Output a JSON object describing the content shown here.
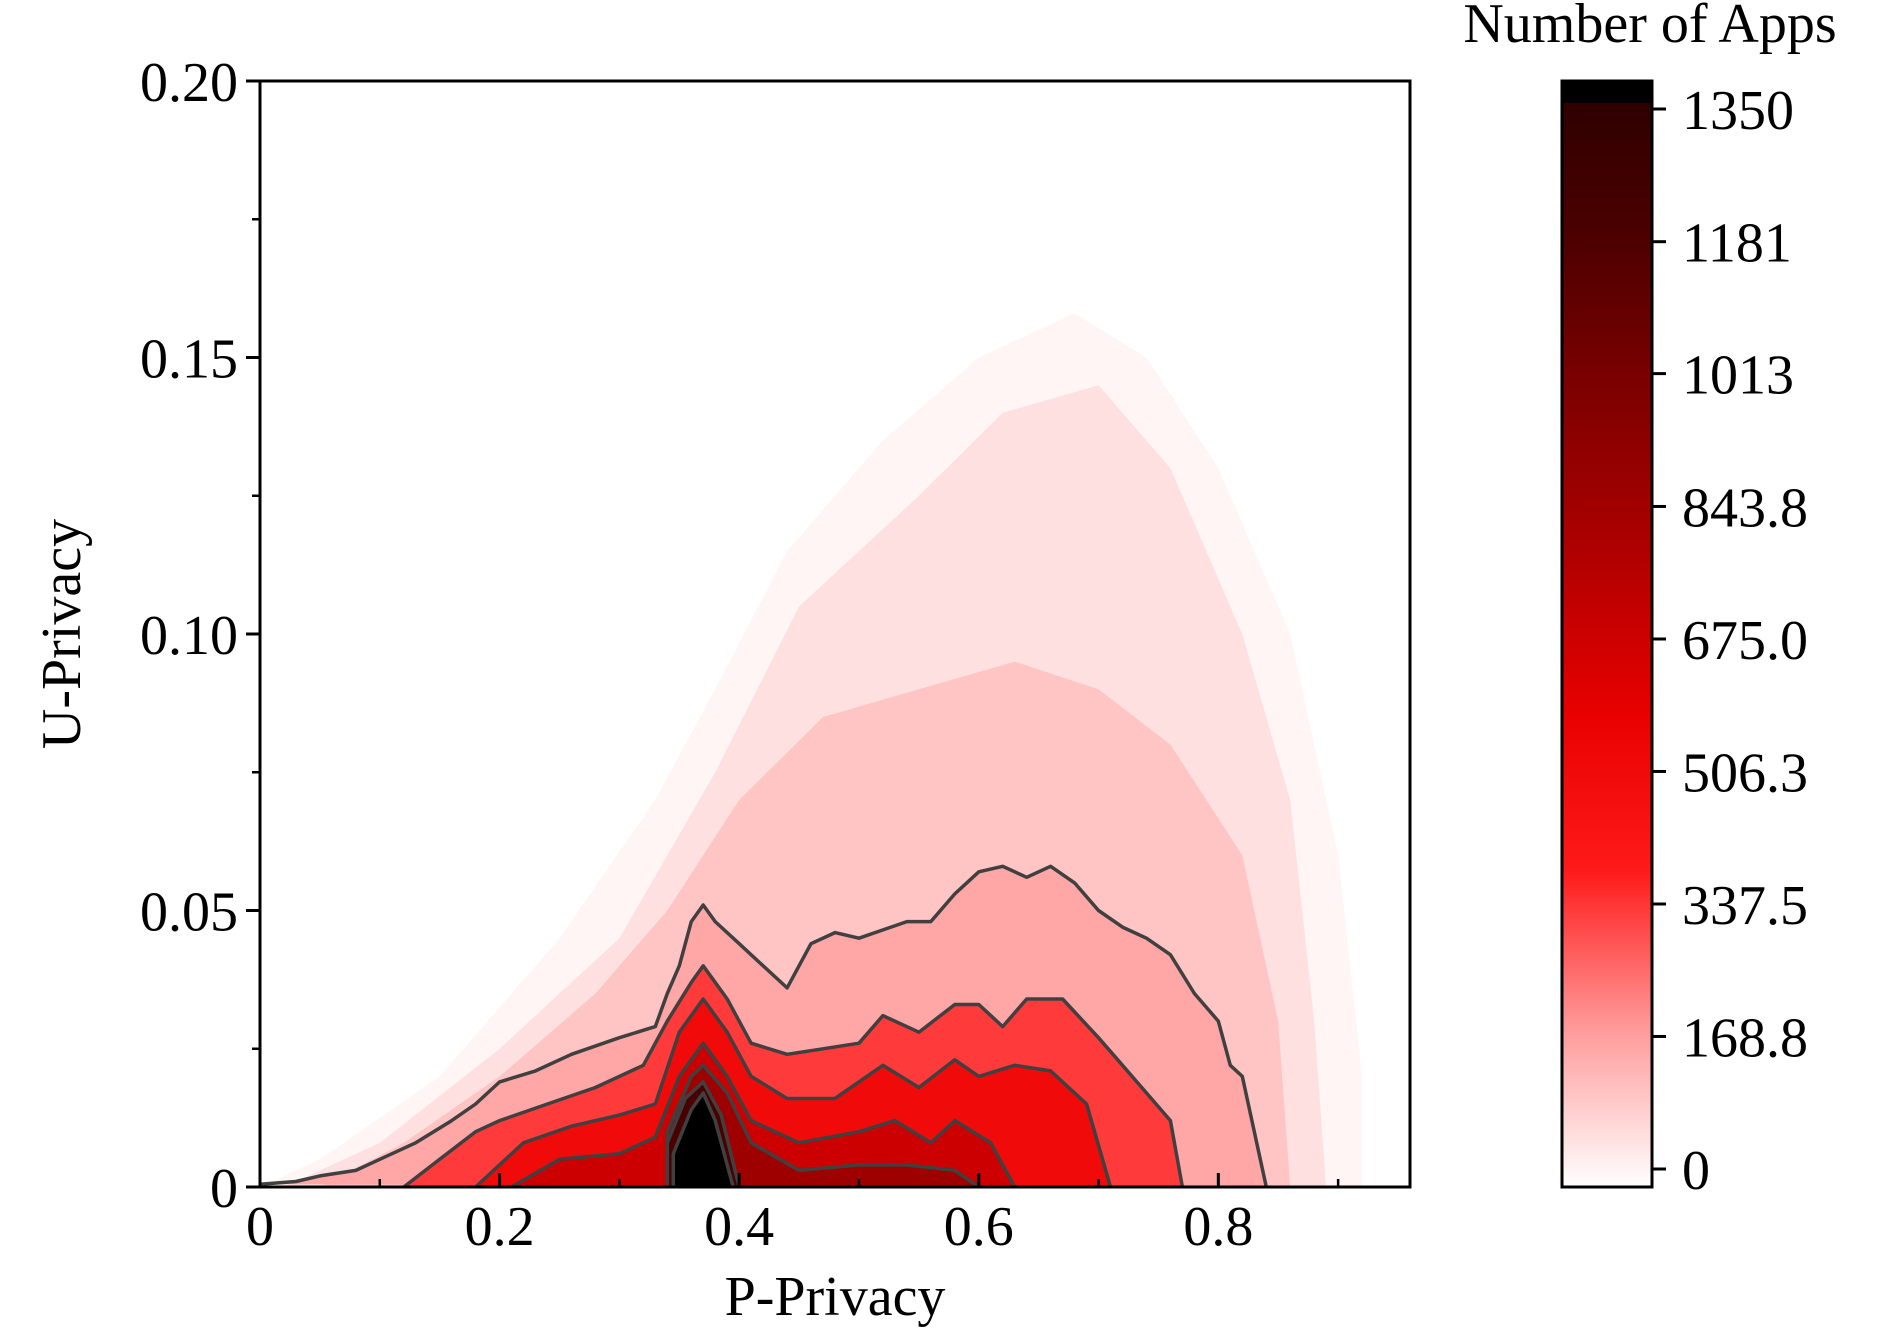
{
  "chart_data": {
    "type": "heatmap",
    "subtype": "filled-contour",
    "title": "",
    "xlabel": "P-Privacy",
    "ylabel": "U-Privacy",
    "xlim": [
      0,
      0.96
    ],
    "ylim": [
      0,
      0.2
    ],
    "x_ticks": [
      0,
      0.2,
      0.4,
      0.6,
      0.8
    ],
    "x_tick_labels": [
      "0",
      "0.2",
      "0.4",
      "0.6",
      "0.8"
    ],
    "y_ticks": [
      0,
      0.05,
      0.1,
      0.15,
      0.2
    ],
    "y_tick_labels": [
      "0",
      "0.05",
      "0.10",
      "0.15",
      "0.20"
    ],
    "colorbar": {
      "title": "Number of Apps",
      "range": [
        0,
        1350
      ],
      "ticks": [
        0,
        168.8,
        337.5,
        506.3,
        675.0,
        843.8,
        1013,
        1181,
        1350
      ],
      "tick_labels": [
        "0",
        "168.8",
        "337.5",
        "506.3",
        "675.0",
        "843.8",
        "1013",
        "1181",
        "1350"
      ],
      "colormap": [
        "#ffffff",
        "#ff9a9a",
        "#ff1a1a",
        "#e80000",
        "#b00000",
        "#800000",
        "#4d0000",
        "#2a0000"
      ],
      "top_color": "#000000"
    },
    "contour_levels": [
      169,
      338,
      506,
      675,
      844,
      1013,
      1181,
      1350
    ],
    "contour_line_color": "#404040",
    "regions": [
      {
        "level": 20,
        "outline": [
          [
            0,
            0
          ],
          [
            0.05,
            0.005
          ],
          [
            0.15,
            0.02
          ],
          [
            0.25,
            0.045
          ],
          [
            0.33,
            0.07
          ],
          [
            0.38,
            0.09
          ],
          [
            0.44,
            0.115
          ],
          [
            0.52,
            0.135
          ],
          [
            0.6,
            0.15
          ],
          [
            0.68,
            0.158
          ],
          [
            0.74,
            0.15
          ],
          [
            0.8,
            0.13
          ],
          [
            0.86,
            0.1
          ],
          [
            0.9,
            0.06
          ],
          [
            0.92,
            0.02
          ],
          [
            0.92,
            0
          ]
        ]
      },
      {
        "level": 60,
        "outline": [
          [
            0.02,
            0
          ],
          [
            0.1,
            0.008
          ],
          [
            0.2,
            0.025
          ],
          [
            0.3,
            0.045
          ],
          [
            0.38,
            0.075
          ],
          [
            0.45,
            0.105
          ],
          [
            0.55,
            0.125
          ],
          [
            0.62,
            0.14
          ],
          [
            0.7,
            0.145
          ],
          [
            0.76,
            0.13
          ],
          [
            0.82,
            0.1
          ],
          [
            0.86,
            0.07
          ],
          [
            0.88,
            0.03
          ],
          [
            0.89,
            0
          ]
        ]
      },
      {
        "level": 110,
        "outline": [
          [
            0.05,
            0
          ],
          [
            0.12,
            0.008
          ],
          [
            0.2,
            0.02
          ],
          [
            0.28,
            0.035
          ],
          [
            0.34,
            0.05
          ],
          [
            0.4,
            0.07
          ],
          [
            0.47,
            0.085
          ],
          [
            0.55,
            0.09
          ],
          [
            0.63,
            0.095
          ],
          [
            0.7,
            0.09
          ],
          [
            0.76,
            0.08
          ],
          [
            0.82,
            0.06
          ],
          [
            0.85,
            0.03
          ],
          [
            0.86,
            0
          ]
        ]
      },
      {
        "level": 169,
        "outline": [
          [
            0,
            0.0005
          ],
          [
            0.03,
            0.001
          ],
          [
            0.05,
            0.002
          ],
          [
            0.08,
            0.003
          ],
          [
            0.1,
            0.005
          ],
          [
            0.13,
            0.008
          ],
          [
            0.16,
            0.012
          ],
          [
            0.18,
            0.015
          ],
          [
            0.2,
            0.019
          ],
          [
            0.23,
            0.021
          ],
          [
            0.26,
            0.024
          ],
          [
            0.3,
            0.027
          ],
          [
            0.33,
            0.029
          ],
          [
            0.34,
            0.035
          ],
          [
            0.35,
            0.04
          ],
          [
            0.36,
            0.048
          ],
          [
            0.37,
            0.051
          ],
          [
            0.38,
            0.048
          ],
          [
            0.4,
            0.044
          ],
          [
            0.42,
            0.04
          ],
          [
            0.44,
            0.036
          ],
          [
            0.46,
            0.044
          ],
          [
            0.48,
            0.046
          ],
          [
            0.5,
            0.045
          ],
          [
            0.54,
            0.048
          ],
          [
            0.56,
            0.048
          ],
          [
            0.58,
            0.053
          ],
          [
            0.6,
            0.057
          ],
          [
            0.62,
            0.058
          ],
          [
            0.64,
            0.056
          ],
          [
            0.66,
            0.058
          ],
          [
            0.68,
            0.055
          ],
          [
            0.7,
            0.05
          ],
          [
            0.72,
            0.047
          ],
          [
            0.74,
            0.045
          ],
          [
            0.76,
            0.042
          ],
          [
            0.78,
            0.035
          ],
          [
            0.8,
            0.03
          ],
          [
            0.81,
            0.022
          ],
          [
            0.82,
            0.02
          ],
          [
            0.84,
            0
          ]
        ]
      },
      {
        "level": 338,
        "outline": [
          [
            0.12,
            0
          ],
          [
            0.15,
            0.005
          ],
          [
            0.18,
            0.01
          ],
          [
            0.2,
            0.012
          ],
          [
            0.24,
            0.015
          ],
          [
            0.28,
            0.018
          ],
          [
            0.32,
            0.022
          ],
          [
            0.34,
            0.03
          ],
          [
            0.36,
            0.037
          ],
          [
            0.37,
            0.04
          ],
          [
            0.39,
            0.034
          ],
          [
            0.41,
            0.026
          ],
          [
            0.44,
            0.024
          ],
          [
            0.47,
            0.025
          ],
          [
            0.5,
            0.026
          ],
          [
            0.52,
            0.031
          ],
          [
            0.55,
            0.028
          ],
          [
            0.58,
            0.033
          ],
          [
            0.6,
            0.033
          ],
          [
            0.62,
            0.029
          ],
          [
            0.64,
            0.034
          ],
          [
            0.67,
            0.034
          ],
          [
            0.7,
            0.027
          ],
          [
            0.72,
            0.022
          ],
          [
            0.74,
            0.017
          ],
          [
            0.76,
            0.012
          ],
          [
            0.77,
            0
          ]
        ]
      },
      {
        "level": 506,
        "outline": [
          [
            0.18,
            0
          ],
          [
            0.22,
            0.008
          ],
          [
            0.26,
            0.011
          ],
          [
            0.3,
            0.013
          ],
          [
            0.33,
            0.015
          ],
          [
            0.35,
            0.028
          ],
          [
            0.37,
            0.034
          ],
          [
            0.39,
            0.028
          ],
          [
            0.41,
            0.02
          ],
          [
            0.44,
            0.016
          ],
          [
            0.48,
            0.016
          ],
          [
            0.52,
            0.022
          ],
          [
            0.55,
            0.018
          ],
          [
            0.58,
            0.023
          ],
          [
            0.6,
            0.02
          ],
          [
            0.63,
            0.022
          ],
          [
            0.66,
            0.021
          ],
          [
            0.69,
            0.015
          ],
          [
            0.71,
            0
          ]
        ]
      },
      {
        "level": 675,
        "outline": [
          [
            0.21,
            0
          ],
          [
            0.25,
            0.005
          ],
          [
            0.3,
            0.006
          ],
          [
            0.33,
            0.009
          ],
          [
            0.35,
            0.02
          ],
          [
            0.37,
            0.026
          ],
          [
            0.39,
            0.02
          ],
          [
            0.41,
            0.012
          ],
          [
            0.45,
            0.008
          ],
          [
            0.5,
            0.01
          ],
          [
            0.53,
            0.012
          ],
          [
            0.56,
            0.008
          ],
          [
            0.58,
            0.012
          ],
          [
            0.61,
            0.008
          ],
          [
            0.63,
            0
          ]
        ]
      },
      {
        "level": 844,
        "outline": [
          [
            0.34,
            0
          ],
          [
            0.34,
            0.01
          ],
          [
            0.36,
            0.02
          ],
          [
            0.37,
            0.022
          ],
          [
            0.39,
            0.017
          ],
          [
            0.41,
            0.008
          ],
          [
            0.45,
            0.003
          ],
          [
            0.5,
            0.004
          ],
          [
            0.54,
            0.004
          ],
          [
            0.58,
            0.003
          ],
          [
            0.6,
            0
          ]
        ]
      },
      {
        "level": 1181,
        "outline": [
          [
            0.34,
            0
          ],
          [
            0.34,
            0.008
          ],
          [
            0.355,
            0.016
          ],
          [
            0.37,
            0.019
          ],
          [
            0.385,
            0.013
          ],
          [
            0.4,
            0
          ]
        ]
      },
      {
        "level": 1350,
        "outline": [
          [
            0.345,
            0
          ],
          [
            0.345,
            0.006
          ],
          [
            0.36,
            0.014
          ],
          [
            0.37,
            0.017
          ],
          [
            0.38,
            0.012
          ],
          [
            0.39,
            0.004
          ],
          [
            0.395,
            0
          ]
        ]
      }
    ]
  }
}
